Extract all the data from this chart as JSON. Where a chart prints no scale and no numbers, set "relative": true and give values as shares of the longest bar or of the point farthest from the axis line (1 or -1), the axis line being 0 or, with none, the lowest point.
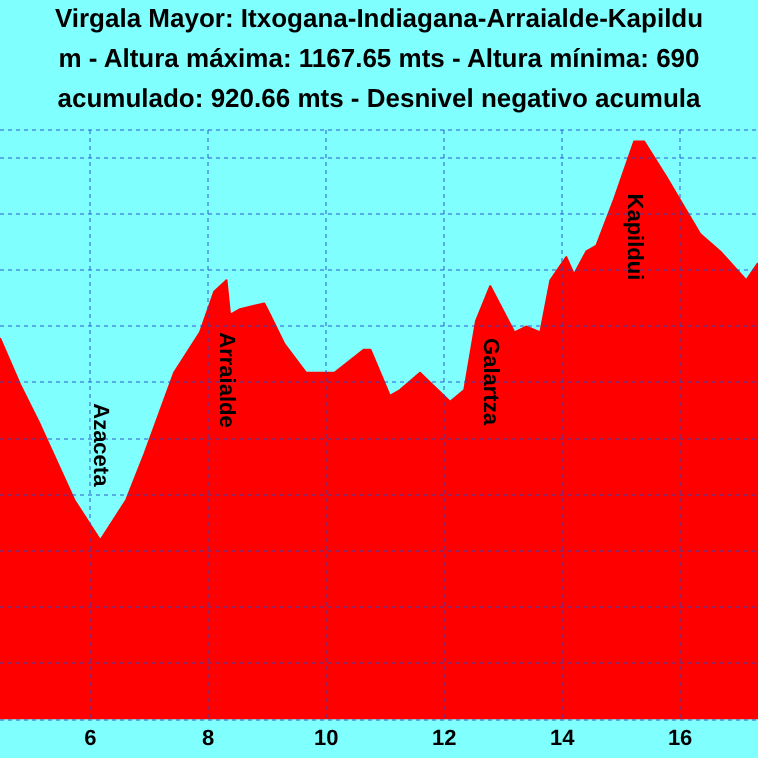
{
  "chart_data": {
    "type": "area",
    "title": "Virgala Mayor: Itxogana-Indiagana-Arraialde-Kapildu",
    "subtitle": "m - Altura máxima: 1167.65 mts - Altura mínima: 690",
    "annotations": [
      "acumulado: 920.66 mts - Desnivel negativo acumula",
      {
        "text": "Azaceta",
        "x": 6.17,
        "y": 0.31
      },
      {
        "text": "Arraialde",
        "x": 8.31,
        "y": 0.76
      },
      {
        "text": "Galartza",
        "x": 12.78,
        "y": 0.75
      },
      {
        "text": "Kapildui",
        "x": 15.22,
        "y": 1
      }
    ],
    "relative": true,
    "x": [
      4.47,
      4.81,
      5.15,
      5.73,
      6.17,
      6.61,
      6.92,
      7.42,
      7.86,
      8.1,
      8.31,
      8.37,
      8.54,
      8.95,
      9.05,
      9.29,
      9.66,
      9.97,
      10.14,
      10.64,
      10.75,
      11.08,
      11.25,
      11.59,
      11.69,
      12.1,
      12.34,
      12.54,
      12.78,
      13.19,
      13.39,
      13.63,
      13.8,
      14.07,
      14.2,
      14.41,
      14.58,
      14.88,
      15.22,
      15.39,
      15.76,
      16.34,
      16.68,
      17.12,
      17.32
    ],
    "series": [
      {
        "color": "#ff0000",
        "values": [
          0.66,
          0.58,
          0.51,
          0.38,
          0.31,
          0.38,
          0.46,
          0.6,
          0.67,
          0.74,
          0.76,
          0.7,
          0.71,
          0.72,
          0.7,
          0.65,
          0.6,
          0.6,
          0.6,
          0.64,
          0.64,
          0.56,
          0.57,
          0.6,
          0.59,
          0.55,
          0.57,
          0.69,
          0.75,
          0.67,
          0.68,
          0.67,
          0.76,
          0.8,
          0.77,
          0.81,
          0.82,
          0.9,
          1,
          1,
          0.94,
          0.84,
          0.81,
          0.76,
          0.79
        ]
      }
    ],
    "xlim": [
      4.47,
      17.32
    ],
    "xticks": [
      6,
      8,
      10,
      12,
      14,
      16
    ],
    "grid": true,
    "legend": false
  }
}
